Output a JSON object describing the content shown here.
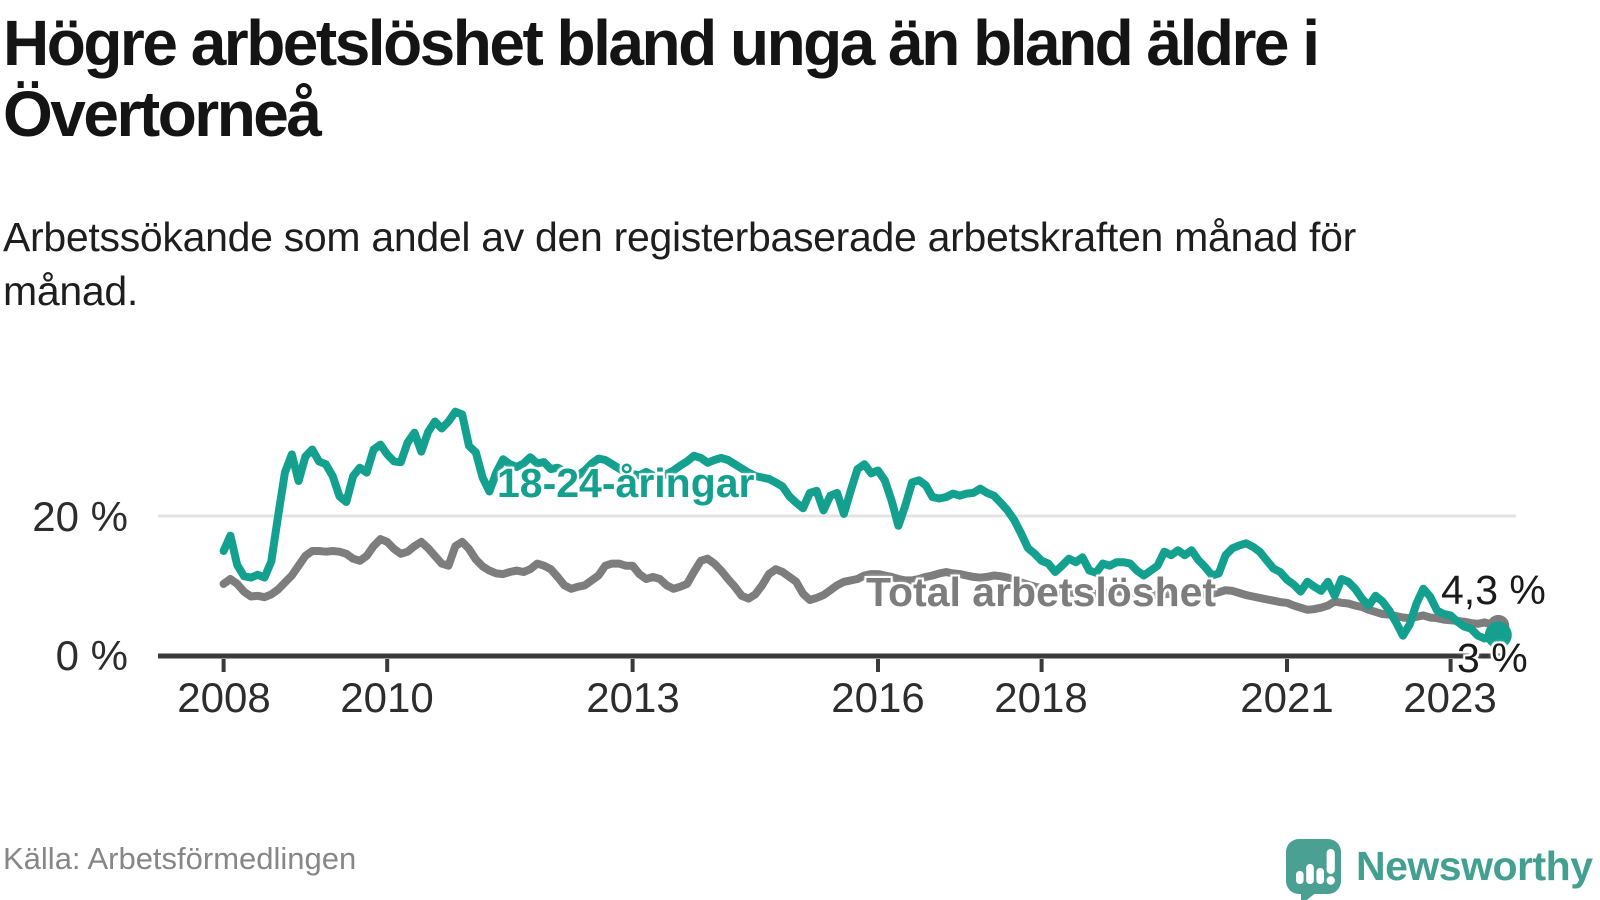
{
  "chart_data": {
    "type": "line",
    "title": "Högre arbetslöshet bland unga än bland äldre i Övertorneå",
    "subtitle": "Arbetssökande som andel av den registerbaserade arbetskraften månad för månad.",
    "unit": "%",
    "grid": "single horizontal gridline at 20 %",
    "legend_position": "inline labels on lines",
    "x_range": [
      2008.0,
      2023.583
    ],
    "y_range_displayed": [
      0,
      36
    ],
    "x_tick_years": [
      2008,
      2010,
      2013,
      2016,
      2018,
      2021,
      2023
    ],
    "x_tick_labels": [
      "2008",
      "2010",
      "2013",
      "2016",
      "2018",
      "2021",
      "2023"
    ],
    "y_tick_values": [
      20,
      0
    ],
    "y_tick_labels": [
      "20 %",
      "0 %"
    ],
    "grid_y_values": [
      20
    ],
    "x_start": 2008.0,
    "x_step": 0.0833333,
    "series": [
      {
        "name": "18-24-åringar",
        "color": "#14a08e",
        "end_value": 3.0,
        "end_label": "3 %",
        "values": [
          15.0,
          17.2,
          13.0,
          11.4,
          11.2,
          11.6,
          11.2,
          13.5,
          20.0,
          26.2,
          28.8,
          25.0,
          28.5,
          29.5,
          27.8,
          27.4,
          25.7,
          22.8,
          22.0,
          25.7,
          26.9,
          26.2,
          29.5,
          30.2,
          28.8,
          27.8,
          27.7,
          30.5,
          31.9,
          29.2,
          32.0,
          33.5,
          32.5,
          33.5,
          34.9,
          34.5,
          30.0,
          29.1,
          25.5,
          23.5,
          26.2,
          28.1,
          27.4,
          27.0,
          27.5,
          28.4,
          27.5,
          27.7,
          26.7,
          26.9,
          26.4,
          26.2,
          25.8,
          26.5,
          27.5,
          28.2,
          28.0,
          27.4,
          26.8,
          26.2,
          26.0,
          25.8,
          26.3,
          25.8,
          25.5,
          26.0,
          26.5,
          27.2,
          27.8,
          28.6,
          28.3,
          27.6,
          28.0,
          28.3,
          28.0,
          27.4,
          26.8,
          26.2,
          25.7,
          25.5,
          25.3,
          24.8,
          24.2,
          22.8,
          21.9,
          21.1,
          23.3,
          23.6,
          20.8,
          22.9,
          23.3,
          20.3,
          23.6,
          26.7,
          27.4,
          26.1,
          26.5,
          25.1,
          22.2,
          18.6,
          21.5,
          24.8,
          25.1,
          24.4,
          22.7,
          22.5,
          22.7,
          23.2,
          22.9,
          23.2,
          23.3,
          23.9,
          23.3,
          22.9,
          21.9,
          20.8,
          19.4,
          17.5,
          15.4,
          14.6,
          13.6,
          13.2,
          12.0,
          12.9,
          13.9,
          13.4,
          14.1,
          12.2,
          11.9,
          13.2,
          12.9,
          13.4,
          13.4,
          13.2,
          12.2,
          11.5,
          12.2,
          12.9,
          14.9,
          14.4,
          15.1,
          14.4,
          15.1,
          13.7,
          12.7,
          11.5,
          11.8,
          14.4,
          15.4,
          15.8,
          16.1,
          15.6,
          14.9,
          13.7,
          12.5,
          12.0,
          10.9,
          10.2,
          9.2,
          10.6,
          9.9,
          9.3,
          10.6,
          8.6,
          11.0,
          10.6,
          9.6,
          8.2,
          7.2,
          8.6,
          7.8,
          6.5,
          4.8,
          2.9,
          4.5,
          7.5,
          9.6,
          8.5,
          6.5,
          6.0,
          5.8,
          4.9,
          4.2,
          3.9,
          2.9,
          2.5,
          2.7,
          3.0
        ]
      },
      {
        "name": "Total arbetslöshet",
        "color": "#7d7d7d",
        "end_value": 4.3,
        "end_label": "4,3 %",
        "values": [
          10.3,
          11.0,
          10.3,
          9.2,
          8.5,
          8.6,
          8.4,
          8.8,
          9.5,
          10.5,
          11.5,
          12.9,
          14.3,
          15.0,
          15.0,
          14.9,
          15.0,
          14.9,
          14.6,
          13.9,
          13.6,
          14.3,
          15.7,
          16.7,
          16.3,
          15.3,
          14.6,
          14.9,
          15.7,
          16.3,
          15.4,
          14.3,
          13.2,
          12.9,
          15.7,
          16.3,
          15.3,
          13.8,
          12.8,
          12.2,
          11.8,
          11.7,
          12.0,
          12.2,
          12.0,
          12.4,
          13.2,
          12.9,
          12.4,
          11.3,
          10.1,
          9.6,
          9.9,
          10.1,
          10.8,
          11.5,
          12.9,
          13.2,
          13.2,
          12.9,
          12.9,
          11.7,
          11.0,
          11.3,
          11.0,
          10.1,
          9.6,
          9.9,
          10.3,
          12.0,
          13.6,
          13.9,
          13.2,
          12.2,
          11.0,
          9.9,
          8.6,
          8.2,
          8.8,
          10.1,
          11.7,
          12.4,
          12.0,
          11.3,
          10.6,
          8.9,
          8.0,
          8.3,
          8.7,
          9.4,
          10.1,
          10.6,
          10.8,
          11.0,
          11.5,
          11.7,
          11.7,
          11.5,
          11.3,
          11.0,
          10.8,
          10.8,
          11.0,
          11.3,
          11.5,
          11.8,
          12.0,
          11.8,
          11.7,
          11.5,
          11.3,
          11.2,
          11.3,
          11.5,
          11.4,
          11.2,
          10.9,
          10.5,
          10.2,
          9.9,
          9.7,
          9.5,
          9.3,
          9.2,
          9.1,
          9.0,
          8.9,
          8.8,
          8.9,
          9.0,
          9.1,
          9.2,
          9.2,
          9.1,
          9.0,
          8.9,
          8.8,
          8.7,
          8.8,
          8.9,
          8.8,
          8.7,
          8.8,
          8.9,
          8.8,
          8.9,
          9.1,
          9.4,
          9.3,
          9.0,
          8.7,
          8.5,
          8.3,
          8.1,
          7.9,
          7.7,
          7.6,
          7.2,
          6.9,
          6.6,
          6.7,
          6.9,
          7.2,
          7.8,
          7.6,
          7.5,
          7.2,
          7.0,
          6.6,
          6.3,
          6.0,
          5.9,
          5.7,
          5.5,
          5.4,
          5.6,
          5.8,
          5.5,
          5.4,
          5.2,
          5.1,
          5.0,
          4.9,
          4.7,
          4.6,
          4.8,
          4.5,
          4.3
        ]
      }
    ]
  },
  "colors": {
    "youth_line": "#14a08e",
    "total_line": "#7d7d7d",
    "gridline": "#e3e3e3",
    "axis": "#3a3a3a",
    "brand_teal": "#43a091"
  },
  "footer": {
    "source": "Källa: Arbetsförmedlingen",
    "brand_name": "Newsworthy",
    "brand_icon": "newsworthy-speech-bubble-bar-chart-icon"
  }
}
